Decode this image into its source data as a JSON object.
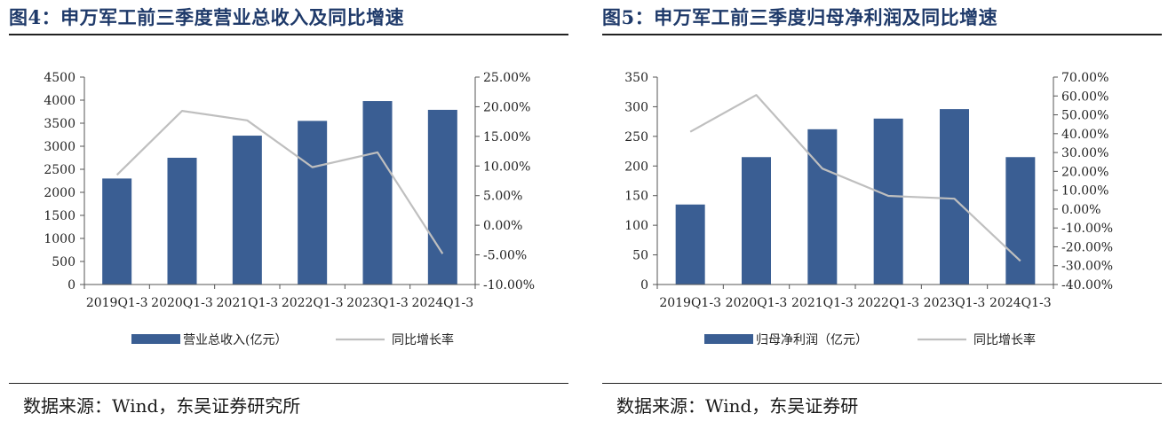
{
  "charts": [
    {
      "title": "图4：申万军工前三季度营业总收入及同比增速",
      "source": "数据来源：Wind，东吴证券研究所",
      "chart_data": {
        "type": "bar",
        "categories": [
          "2019Q1-3",
          "2020Q1-3",
          "2021Q1-3",
          "2022Q1-3",
          "2023Q1-3",
          "2024Q1-3"
        ],
        "series": [
          {
            "name": "营业总收入(亿元）",
            "type": "bar",
            "axis": "left",
            "color": "#3a5e93",
            "values": [
              2300,
              2750,
              3230,
              3550,
              3980,
              3790
            ]
          },
          {
            "name": "同比增长率",
            "type": "line",
            "axis": "right",
            "color": "#bfbfbf",
            "values": [
              8.5,
              19.3,
              17.7,
              9.8,
              12.3,
              -4.8
            ]
          }
        ],
        "left_axis": {
          "min": 0,
          "max": 4500,
          "step": 500,
          "ticks": [
            "0",
            "500",
            "1000",
            "1500",
            "2000",
            "2500",
            "3000",
            "3500",
            "4000",
            "4500"
          ]
        },
        "right_axis": {
          "min": -10,
          "max": 25,
          "step": 5,
          "ticks": [
            "-10.00%",
            "-5.00%",
            "0.00%",
            "5.00%",
            "10.00%",
            "15.00%",
            "20.00%",
            "25.00%"
          ]
        },
        "legend_position": "bottom",
        "grid": false
      }
    },
    {
      "title": "图5：申万军工前三季度归母净利润及同比增速",
      "source": "数据来源：Wind，东吴证券研",
      "chart_data": {
        "type": "bar",
        "categories": [
          "2019Q1-3",
          "2020Q1-3",
          "2021Q1-3",
          "2022Q1-3",
          "2023Q1-3",
          "2024Q1-3"
        ],
        "series": [
          {
            "name": "归母净利润（亿元）",
            "type": "bar",
            "axis": "left",
            "color": "#3a5e93",
            "values": [
              135,
              215,
              262,
              280,
              296,
              215
            ]
          },
          {
            "name": "同比增长率",
            "type": "line",
            "axis": "right",
            "color": "#bfbfbf",
            "values": [
              41,
              60.5,
              21.5,
              7,
              5.5,
              -27.5
            ]
          }
        ],
        "left_axis": {
          "min": 0,
          "max": 350,
          "step": 50,
          "ticks": [
            "0",
            "50",
            "100",
            "150",
            "200",
            "250",
            "300",
            "350"
          ]
        },
        "right_axis": {
          "min": -40,
          "max": 70,
          "step": 10,
          "ticks": [
            "-40.00%",
            "-30.00%",
            "-20.00%",
            "-10.00%",
            "0.00%",
            "10.00%",
            "20.00%",
            "30.00%",
            "40.00%",
            "50.00%",
            "60.00%",
            "70.00%"
          ]
        },
        "legend_position": "bottom",
        "grid": false
      }
    }
  ]
}
